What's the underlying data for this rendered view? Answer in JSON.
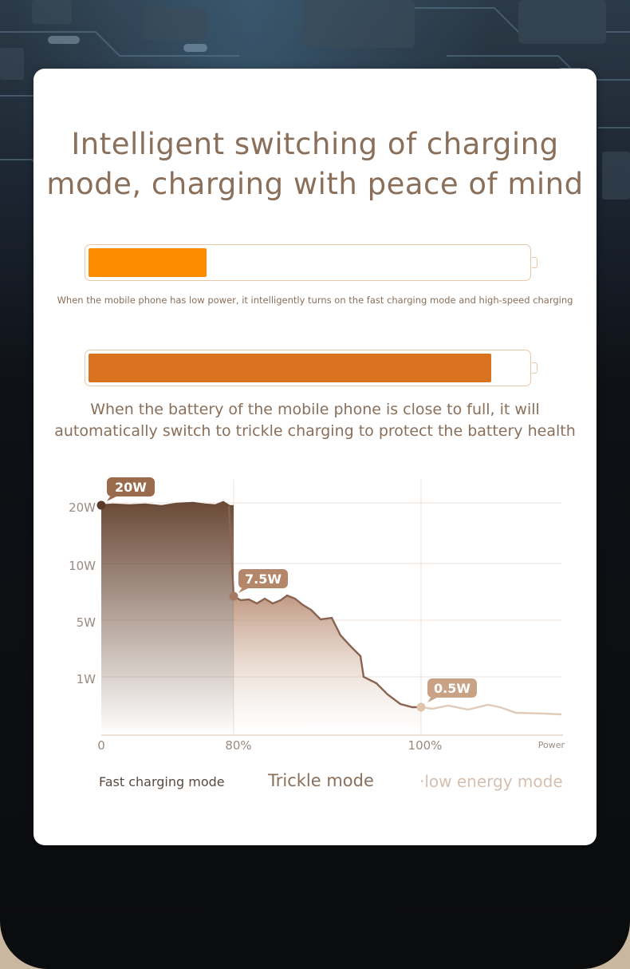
{
  "title": {
    "line1": "Intelligent switching of charging",
    "line2": "mode, charging with peace of mind"
  },
  "battery_low": {
    "level_percent": 27,
    "color": "#ff8c00",
    "caption": "When the mobile phone has low power, it intelligently turns on the fast charging mode and high-speed charging"
  },
  "battery_full": {
    "level_percent": 92,
    "color": "#d9731f",
    "caption_line1": "When the battery of the mobile phone is close to full, it will",
    "caption_line2": "automatically switch to trickle charging to protect the battery health"
  },
  "chart_data": {
    "type": "area",
    "y_tick_labels": [
      "20W",
      "10W",
      "5W",
      "1W"
    ],
    "x_tick_labels": [
      "0",
      "80%",
      "100%"
    ],
    "xlabel": "Power",
    "annotations": [
      {
        "label": "20W",
        "x": 0,
        "y": "20W"
      },
      {
        "label": "7.5W",
        "x": 80,
        "y": "7.5W"
      },
      {
        "label": "0.5W",
        "x": 100,
        "y": "0.5W"
      }
    ],
    "series": [
      {
        "name": "Fast charging mode",
        "color": "#6b4a38",
        "x_range": [
          0,
          80
        ]
      },
      {
        "name": "Trickle mode",
        "color": "#b98e75",
        "x_range": [
          80,
          100
        ]
      },
      {
        "name": "·low energy mode",
        "color": "#e0cbb9",
        "x_range": [
          100,
          120
        ]
      }
    ],
    "grid": true
  }
}
